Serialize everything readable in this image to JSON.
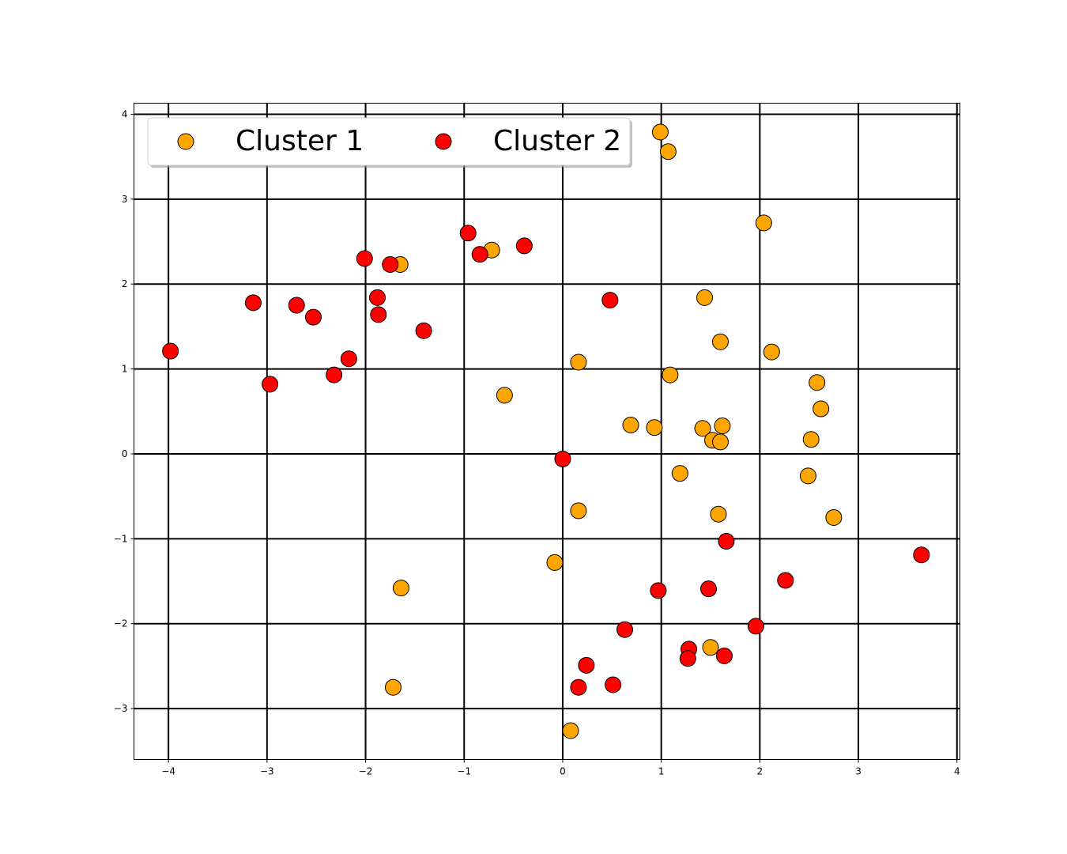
{
  "chart_data": {
    "type": "scatter",
    "title": "",
    "xlabel": "",
    "ylabel": "",
    "xlim": [
      -4.35,
      4.03
    ],
    "ylim": [
      -3.6,
      4.13
    ],
    "xticks": [
      -4,
      -3,
      -2,
      -1,
      0,
      1,
      2,
      3,
      4
    ],
    "yticks": [
      -3,
      -2,
      -1,
      0,
      1,
      2,
      3,
      4
    ],
    "xtick_labels": [
      "−4",
      "−3",
      "−2",
      "−1",
      "0",
      "1",
      "2",
      "3",
      "4"
    ],
    "ytick_labels": [
      "−3",
      "−2",
      "−1",
      "0",
      "1",
      "2",
      "3",
      "4"
    ],
    "grid": true,
    "legend_position": "upper-left",
    "legend_columns": 2,
    "series": [
      {
        "name": "Cluster 1",
        "color": "#FFA500",
        "points": [
          [
            0.99,
            3.79
          ],
          [
            1.07,
            3.56
          ],
          [
            2.04,
            2.72
          ],
          [
            -0.72,
            2.4
          ],
          [
            -1.65,
            2.23
          ],
          [
            1.44,
            1.84
          ],
          [
            1.6,
            1.32
          ],
          [
            2.12,
            1.2
          ],
          [
            0.16,
            1.08
          ],
          [
            1.09,
            0.93
          ],
          [
            2.58,
            0.84
          ],
          [
            -0.59,
            0.69
          ],
          [
            2.62,
            0.53
          ],
          [
            0.69,
            0.34
          ],
          [
            0.93,
            0.31
          ],
          [
            1.42,
            0.3
          ],
          [
            1.62,
            0.33
          ],
          [
            1.52,
            0.16
          ],
          [
            1.6,
            0.14
          ],
          [
            2.52,
            0.17
          ],
          [
            1.19,
            -0.23
          ],
          [
            2.49,
            -0.26
          ],
          [
            0.16,
            -0.67
          ],
          [
            1.58,
            -0.71
          ],
          [
            2.75,
            -0.75
          ],
          [
            -0.08,
            -1.28
          ],
          [
            -1.64,
            -1.58
          ],
          [
            1.5,
            -2.28
          ],
          [
            -1.72,
            -2.75
          ],
          [
            0.08,
            -3.26
          ]
        ]
      },
      {
        "name": "Cluster 2",
        "color": "#FF0000",
        "points": [
          [
            -0.96,
            2.6
          ],
          [
            -0.84,
            2.35
          ],
          [
            -0.39,
            2.45
          ],
          [
            -2.01,
            2.3
          ],
          [
            -1.75,
            2.23
          ],
          [
            -3.14,
            1.78
          ],
          [
            -2.7,
            1.75
          ],
          [
            -2.53,
            1.61
          ],
          [
            -1.88,
            1.84
          ],
          [
            -1.87,
            1.64
          ],
          [
            -1.41,
            1.45
          ],
          [
            0.48,
            1.81
          ],
          [
            -3.98,
            1.21
          ],
          [
            -2.17,
            1.12
          ],
          [
            -2.32,
            0.93
          ],
          [
            -2.97,
            0.82
          ],
          [
            0.0,
            -0.06
          ],
          [
            1.66,
            -1.03
          ],
          [
            3.64,
            -1.19
          ],
          [
            2.26,
            -1.49
          ],
          [
            0.97,
            -1.61
          ],
          [
            1.48,
            -1.59
          ],
          [
            0.63,
            -2.07
          ],
          [
            1.96,
            -2.03
          ],
          [
            1.28,
            -2.3
          ],
          [
            1.27,
            -2.41
          ],
          [
            1.64,
            -2.38
          ],
          [
            0.24,
            -2.49
          ],
          [
            0.16,
            -2.75
          ],
          [
            0.51,
            -2.72
          ]
        ]
      }
    ]
  }
}
